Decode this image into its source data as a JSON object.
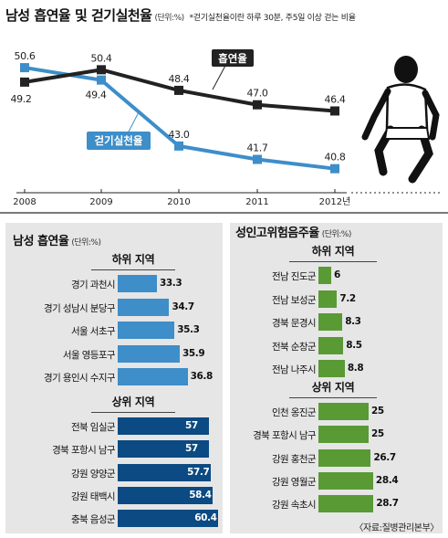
{
  "header": {
    "title": "남성 흡연율 및 걷기실천율",
    "unit": "(단위:%)",
    "note": "*걷기실천율이란 하루 30분, 주5일 이상 걷는 비율"
  },
  "colors": {
    "smoking": "#222222",
    "walking": "#3d8ec9",
    "low_bar": "#3d8ec9",
    "high_bar": "#0b4a82",
    "alcohol_bar": "#5a9a35",
    "panel_bg": "#e6e6e6"
  },
  "chart_data": [
    {
      "type": "line",
      "x": [
        "2008",
        "2009",
        "2010",
        "2011",
        "2012년"
      ],
      "series": [
        {
          "name": "흡연율",
          "values": [
            49.2,
            50.4,
            48.4,
            47.0,
            46.4
          ],
          "labels": [
            "49.2",
            "50.4",
            "48.4",
            "47.0",
            "46.4"
          ]
        },
        {
          "name": "걷기실천율",
          "values": [
            50.6,
            49.4,
            43.0,
            41.7,
            40.8
          ],
          "labels": [
            "50.6",
            "49.4",
            "43.0",
            "41.7",
            "40.8"
          ]
        }
      ],
      "ylim": [
        39,
        53
      ],
      "grid": false,
      "legend": "inline labels"
    },
    {
      "type": "bar",
      "title": "남성 흡연율",
      "unit": "(단위:%)",
      "groups": [
        {
          "name": "하위 지역",
          "categories": [
            "경기 과천시",
            "경기 성남시 분당구",
            "서울 서초구",
            "서울 영등포구",
            "경기 용인시 수지구"
          ],
          "values": [
            33.3,
            34.7,
            35.3,
            35.9,
            36.8
          ],
          "labels": [
            "33.3",
            "34.7",
            "35.3",
            "35.9",
            "36.8"
          ]
        },
        {
          "name": "상위 지역",
          "categories": [
            "전북 임실군",
            "경북 포항시 남구",
            "강원 양양군",
            "강원 태백시",
            "충북 음성군"
          ],
          "values": [
            57,
            57,
            57.7,
            58.4,
            60.4
          ],
          "labels": [
            "57",
            "57",
            "57.7",
            "58.4",
            "60.4"
          ]
        }
      ]
    },
    {
      "type": "bar",
      "title": "성인고위험음주율",
      "unit": "(단위:%)",
      "groups": [
        {
          "name": "하위 지역",
          "categories": [
            "전남 진도군",
            "전남 보성군",
            "경북 문경시",
            "전북 순창군",
            "전남 나주시"
          ],
          "values": [
            6,
            7.2,
            8.3,
            8.5,
            8.8
          ],
          "labels": [
            "6",
            "7.2",
            "8.3",
            "8.5",
            "8.8"
          ]
        },
        {
          "name": "상위 지역",
          "categories": [
            "인천 옹진군",
            "경북 포항시 남구",
            "강원 홍천군",
            "강원 영월군",
            "강원 속초시"
          ],
          "values": [
            25,
            25,
            26.7,
            28.4,
            28.7
          ],
          "labels": [
            "25",
            "25",
            "26.7",
            "28.4",
            "28.7"
          ]
        }
      ]
    }
  ],
  "source": "〈자료:질병관리본부〉"
}
